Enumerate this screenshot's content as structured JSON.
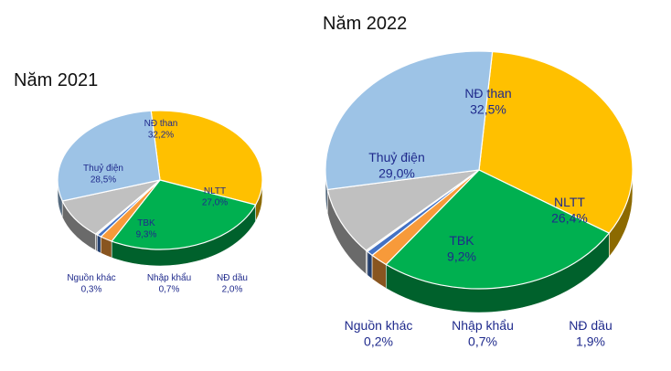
{
  "chart_data": [
    {
      "type": "pie",
      "title": "Năm 2021",
      "slices": [
        {
          "name": "NĐ than",
          "value": 32.2,
          "label": "32,2%",
          "color": "#ffc000"
        },
        {
          "name": "NLTT",
          "value": 27.0,
          "label": "27,0%",
          "color": "#00b050"
        },
        {
          "name": "NĐ dầu",
          "value": 2.0,
          "label": "2,0%",
          "color": "#f79a3a"
        },
        {
          "name": "Nhập khẩu",
          "value": 0.7,
          "label": "0,7%",
          "color": "#4472c4"
        },
        {
          "name": "Nguồn khác",
          "value": 0.3,
          "label": "0,3%",
          "color": "#e8e8e8"
        },
        {
          "name": "TBK",
          "value": 9.3,
          "label": "9,3%",
          "color": "#c0c0c0"
        },
        {
          "name": "Thuỷ điện",
          "value": 28.5,
          "label": "28,5%",
          "color": "#9dc3e6"
        }
      ]
    },
    {
      "type": "pie",
      "title": "Năm 2022",
      "slices": [
        {
          "name": "NĐ than",
          "value": 32.5,
          "label": "32,5%",
          "color": "#ffc000"
        },
        {
          "name": "NLTT",
          "value": 26.4,
          "label": "26,4%",
          "color": "#00b050"
        },
        {
          "name": "NĐ dầu",
          "value": 1.9,
          "label": "1,9%",
          "color": "#f79a3a"
        },
        {
          "name": "Nhập khẩu",
          "value": 0.7,
          "label": "0,7%",
          "color": "#4472c4"
        },
        {
          "name": "Nguồn khác",
          "value": 0.2,
          "label": "0,2%",
          "color": "#e8e8e8"
        },
        {
          "name": "TBK",
          "value": 9.2,
          "label": "9,2%",
          "color": "#c0c0c0"
        },
        {
          "name": "Thuỷ điện",
          "value": 29.0,
          "label": "29,0%",
          "color": "#9dc3e6"
        }
      ]
    }
  ]
}
